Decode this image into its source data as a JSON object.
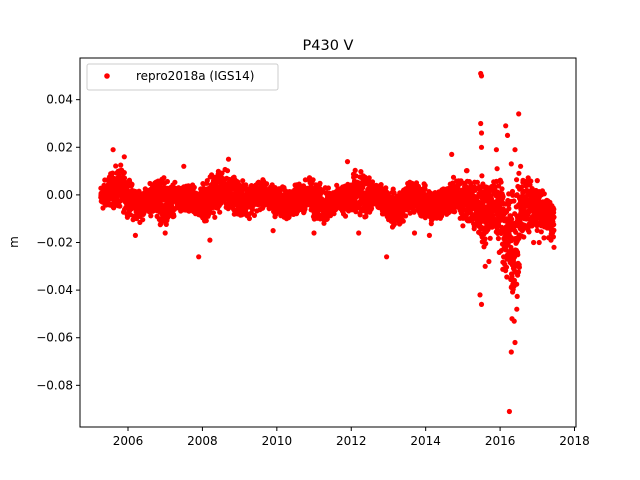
{
  "chart_data": {
    "type": "scatter",
    "title": "P430 V",
    "xlabel": "",
    "ylabel": "m",
    "xlim": [
      2004.71,
      2018.04
    ],
    "ylim": [
      -0.0975,
      0.0575
    ],
    "x_ticks": [
      2006,
      2008,
      2010,
      2012,
      2014,
      2016,
      2018
    ],
    "x_tick_labels": [
      "2006",
      "2008",
      "2010",
      "2012",
      "2014",
      "2016",
      "2018"
    ],
    "y_ticks": [
      -0.08,
      -0.06,
      -0.04,
      -0.02,
      0.0,
      0.02,
      0.04
    ],
    "y_tick_labels": [
      "−0.08",
      "−0.06",
      "−0.04",
      "−0.02",
      "0.00",
      "0.02",
      "0.04"
    ],
    "legend": {
      "position": "upper left",
      "entries": [
        "repro2018a (IGS14)"
      ]
    },
    "grid": false,
    "series": [
      {
        "name": "repro2018a (IGS14)",
        "color": "#ff0000",
        "marker": "circle",
        "x_start": 2005.27,
        "x_end": 2017.45,
        "envelope": {
          "x": [
            2005.27,
            2005.5,
            2005.8,
            2006.0,
            2006.2,
            2006.5,
            2006.7,
            2006.9,
            2007.1,
            2007.3,
            2007.6,
            2007.9,
            2008.1,
            2008.4,
            2008.7,
            2009.0,
            2009.2,
            2009.5,
            2009.7,
            2010.0,
            2010.3,
            2010.6,
            2010.9,
            2011.1,
            2011.4,
            2011.6,
            2011.9,
            2012.1,
            2012.4,
            2012.6,
            2012.9,
            2013.1,
            2013.4,
            2013.6,
            2013.9,
            2014.1,
            2014.4,
            2014.6,
            2014.9,
            2015.1,
            2015.4,
            2015.6,
            2015.8,
            2016.0,
            2016.2,
            2016.4,
            2016.6,
            2016.8,
            2017.0,
            2017.2,
            2017.45
          ],
          "low": [
            -0.009,
            -0.007,
            -0.009,
            -0.01,
            -0.014,
            -0.011,
            -0.009,
            -0.018,
            -0.013,
            -0.009,
            -0.011,
            -0.012,
            -0.016,
            -0.01,
            -0.008,
            -0.011,
            -0.012,
            -0.009,
            -0.008,
            -0.011,
            -0.013,
            -0.009,
            -0.01,
            -0.015,
            -0.013,
            -0.009,
            -0.011,
            -0.014,
            -0.012,
            -0.008,
            -0.01,
            -0.016,
            -0.014,
            -0.009,
            -0.012,
            -0.015,
            -0.013,
            -0.011,
            -0.012,
            -0.016,
            -0.022,
            -0.028,
            -0.02,
            -0.03,
            -0.05,
            -0.055,
            -0.025,
            -0.02,
            -0.018,
            -0.019,
            -0.022
          ],
          "high": [
            0.006,
            0.011,
            0.015,
            0.009,
            0.006,
            0.004,
            0.009,
            0.012,
            0.008,
            0.006,
            0.006,
            0.005,
            0.011,
            0.013,
            0.012,
            0.008,
            0.007,
            0.009,
            0.007,
            0.006,
            0.005,
            0.006,
            0.01,
            0.008,
            0.004,
            0.005,
            0.009,
            0.013,
            0.01,
            0.007,
            0.006,
            0.004,
            0.006,
            0.009,
            0.007,
            0.005,
            0.006,
            0.008,
            0.01,
            0.012,
            0.01,
            0.016,
            0.01,
            0.015,
            0.014,
            0.008,
            0.015,
            0.01,
            0.006,
            0.003,
            0.001
          ]
        },
        "outliers": [
          [
            2005.6,
            0.019
          ],
          [
            2005.9,
            0.016
          ],
          [
            2006.2,
            -0.017
          ],
          [
            2007.0,
            -0.016
          ],
          [
            2007.5,
            0.012
          ],
          [
            2007.9,
            -0.026
          ],
          [
            2008.7,
            0.015
          ],
          [
            2008.2,
            -0.019
          ],
          [
            2009.9,
            -0.015
          ],
          [
            2011.0,
            -0.016
          ],
          [
            2011.9,
            0.014
          ],
          [
            2012.2,
            -0.016
          ],
          [
            2012.95,
            -0.026
          ],
          [
            2013.7,
            -0.016
          ],
          [
            2014.1,
            -0.017
          ],
          [
            2014.7,
            0.017
          ],
          [
            2015.0,
            -0.013
          ],
          [
            2015.48,
            0.051
          ],
          [
            2015.5,
            0.05
          ],
          [
            2015.48,
            0.03
          ],
          [
            2015.5,
            0.026
          ],
          [
            2015.5,
            0.02
          ],
          [
            2015.46,
            -0.042
          ],
          [
            2015.5,
            -0.046
          ],
          [
            2015.6,
            -0.03
          ],
          [
            2015.7,
            -0.028
          ],
          [
            2015.9,
            0.019
          ],
          [
            2015.92,
            0.011
          ],
          [
            2016.15,
            0.029
          ],
          [
            2016.2,
            0.025
          ],
          [
            2016.3,
            -0.066
          ],
          [
            2016.38,
            -0.053
          ],
          [
            2016.4,
            -0.062
          ],
          [
            2016.45,
            -0.048
          ],
          [
            2016.32,
            -0.052
          ],
          [
            2016.25,
            -0.091
          ],
          [
            2016.4,
            0.019
          ],
          [
            2016.5,
            0.034
          ],
          [
            2016.55,
            0.012
          ],
          [
            2016.9,
            -0.02
          ],
          [
            2017.05,
            -0.02
          ],
          [
            2017.3,
            -0.018
          ],
          [
            2017.45,
            -0.022
          ],
          [
            2017.0,
            0.006
          ],
          [
            2016.3,
            0.013
          ]
        ]
      }
    ]
  }
}
